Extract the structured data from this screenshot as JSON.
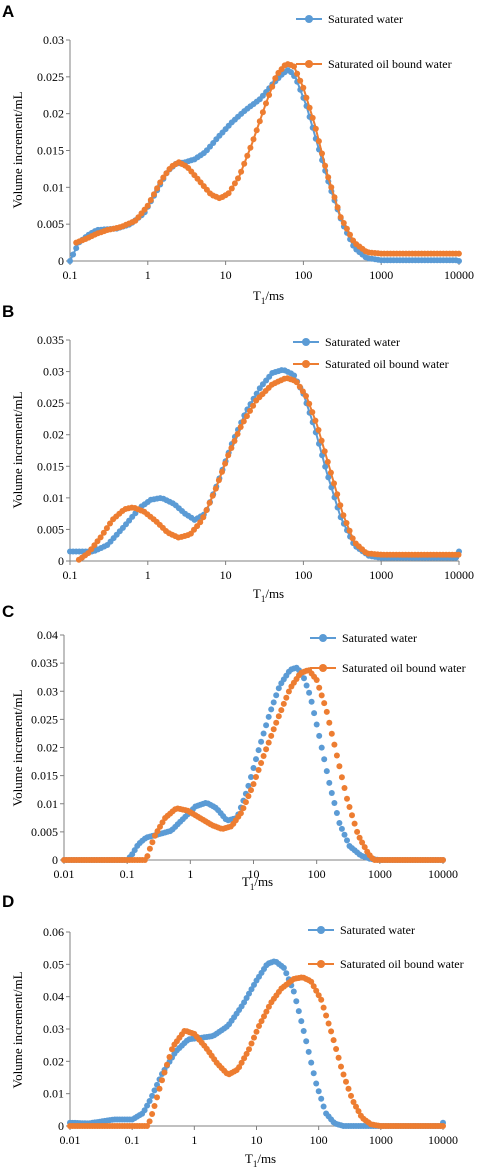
{
  "colors": {
    "water": "#5b9bd5",
    "oil": "#ed7d31",
    "axis": "#808080"
  },
  "chart_data": [
    {
      "type": "line",
      "panel": "A",
      "xlabel_main": "T",
      "xlabel_sub": "1",
      "xlabel_unit": "/ms",
      "ylabel": "Volume increment/mL",
      "x_scale": "log",
      "xlim": [
        0.1,
        10000
      ],
      "x_ticks": [
        "0.1",
        "1",
        "10",
        "100",
        "1000",
        "10000"
      ],
      "ylim": [
        0,
        0.03
      ],
      "y_ticks": [
        "0",
        "0.005",
        "0.01",
        "0.015",
        "0.02",
        "0.025",
        "0.03"
      ],
      "grid": false,
      "legend_position": "top-right",
      "series": [
        {
          "name": "Saturated water",
          "color_key": "water",
          "points": [
            [
              0.1,
              0
            ],
            [
              0.13,
              0.0025
            ],
            [
              0.17,
              0.0035
            ],
            [
              0.22,
              0.0042
            ],
            [
              0.28,
              0.0043
            ],
            [
              0.4,
              0.0044
            ],
            [
              0.6,
              0.005
            ],
            [
              0.9,
              0.0065
            ],
            [
              1.3,
              0.0095
            ],
            [
              1.8,
              0.0122
            ],
            [
              2.3,
              0.0132
            ],
            [
              3,
              0.0134
            ],
            [
              4,
              0.0138
            ],
            [
              5.5,
              0.0148
            ],
            [
              8,
              0.0168
            ],
            [
              12,
              0.0188
            ],
            [
              18,
              0.0205
            ],
            [
              28,
              0.022
            ],
            [
              40,
              0.024
            ],
            [
              55,
              0.0255
            ],
            [
              65,
              0.026
            ],
            [
              80,
              0.0248
            ],
            [
              110,
              0.021
            ],
            [
              150,
              0.016
            ],
            [
              220,
              0.01
            ],
            [
              320,
              0.005
            ],
            [
              450,
              0.0018
            ],
            [
              650,
              0.0004
            ],
            [
              1000,
              0.0001
            ],
            [
              10000,
              0.0001
            ]
          ]
        },
        {
          "name": "Saturated oil bound water",
          "color_key": "oil",
          "points": [
            [
              0.12,
              0.0025
            ],
            [
              0.16,
              0.003
            ],
            [
              0.22,
              0.0037
            ],
            [
              0.3,
              0.0042
            ],
            [
              0.45,
              0.0046
            ],
            [
              0.7,
              0.0055
            ],
            [
              1,
              0.0075
            ],
            [
              1.5,
              0.011
            ],
            [
              2,
              0.0128
            ],
            [
              2.5,
              0.0134
            ],
            [
              3.2,
              0.0128
            ],
            [
              4.5,
              0.011
            ],
            [
              6.5,
              0.009
            ],
            [
              8.5,
              0.0085
            ],
            [
              11,
              0.0092
            ],
            [
              15,
              0.0115
            ],
            [
              22,
              0.016
            ],
            [
              32,
              0.021
            ],
            [
              45,
              0.0252
            ],
            [
              60,
              0.0268
            ],
            [
              75,
              0.0265
            ],
            [
              100,
              0.0235
            ],
            [
              140,
              0.0185
            ],
            [
              200,
              0.012
            ],
            [
              300,
              0.006
            ],
            [
              450,
              0.0025
            ],
            [
              650,
              0.0012
            ],
            [
              1000,
              0.001
            ],
            [
              10000,
              0.001
            ]
          ]
        }
      ]
    },
    {
      "type": "line",
      "panel": "B",
      "xlabel_main": "T",
      "xlabel_sub": "1",
      "xlabel_unit": "/ms",
      "ylabel": "Volume increment/mL",
      "x_scale": "log",
      "xlim": [
        0.1,
        10000
      ],
      "x_ticks": [
        "0.1",
        "1",
        "10",
        "100",
        "1000",
        "10000"
      ],
      "ylim": [
        0,
        0.035
      ],
      "y_ticks": [
        "0",
        "0.005",
        "0.01",
        "0.015",
        "0.02",
        "0.025",
        "0.03",
        "0.035"
      ],
      "grid": false,
      "legend_position": "top-right",
      "series": [
        {
          "name": "Saturated water",
          "color_key": "water",
          "points": [
            [
              0.1,
              0.0015
            ],
            [
              0.2,
              0.0015
            ],
            [
              0.3,
              0.0025
            ],
            [
              0.5,
              0.0055
            ],
            [
              0.8,
              0.0085
            ],
            [
              1.1,
              0.0097
            ],
            [
              1.5,
              0.01
            ],
            [
              2.2,
              0.009
            ],
            [
              3,
              0.0075
            ],
            [
              4,
              0.0065
            ],
            [
              5.5,
              0.0075
            ],
            [
              8,
              0.0125
            ],
            [
              12,
              0.0185
            ],
            [
              18,
              0.0235
            ],
            [
              28,
              0.0275
            ],
            [
              40,
              0.0298
            ],
            [
              55,
              0.0303
            ],
            [
              75,
              0.0295
            ],
            [
              100,
              0.0265
            ],
            [
              140,
              0.021
            ],
            [
              200,
              0.014
            ],
            [
              300,
              0.007
            ],
            [
              450,
              0.0025
            ],
            [
              700,
              0.0008
            ],
            [
              1000,
              0.0005
            ],
            [
              10000,
              0.0005
            ]
          ]
        },
        {
          "name": "Saturated oil bound water",
          "color_key": "oil",
          "points": [
            [
              0.13,
              0.0002
            ],
            [
              0.17,
              0.0012
            ],
            [
              0.25,
              0.0038
            ],
            [
              0.35,
              0.0065
            ],
            [
              0.5,
              0.0082
            ],
            [
              0.65,
              0.0085
            ],
            [
              0.9,
              0.0078
            ],
            [
              1.3,
              0.0062
            ],
            [
              1.8,
              0.0045
            ],
            [
              2.5,
              0.0037
            ],
            [
              3.5,
              0.0042
            ],
            [
              5,
              0.0065
            ],
            [
              7.5,
              0.0115
            ],
            [
              11,
              0.017
            ],
            [
              16,
              0.0215
            ],
            [
              25,
              0.0255
            ],
            [
              40,
              0.028
            ],
            [
              60,
              0.029
            ],
            [
              80,
              0.0285
            ],
            [
              110,
              0.026
            ],
            [
              150,
              0.0215
            ],
            [
              220,
              0.0145
            ],
            [
              320,
              0.0075
            ],
            [
              450,
              0.003
            ],
            [
              650,
              0.0012
            ],
            [
              1000,
              0.001
            ],
            [
              10000,
              0.001
            ]
          ]
        }
      ]
    },
    {
      "type": "scatter",
      "panel": "C",
      "xlabel_main": "T",
      "xlabel_sub": "1",
      "xlabel_unit": "/ms",
      "ylabel": "Volume increment/mL",
      "x_scale": "log",
      "xlim": [
        0.01,
        10000
      ],
      "x_ticks": [
        "0.01",
        "0.1",
        "1",
        "10",
        "100",
        "1000",
        "10000"
      ],
      "ylim": [
        0,
        0.04
      ],
      "y_ticks": [
        "0",
        "0.005",
        "0.01",
        "0.015",
        "0.02",
        "0.025",
        "0.03",
        "0.035",
        "0.04"
      ],
      "grid": false,
      "legend_position": "top-right",
      "series": [
        {
          "name": "Saturated water",
          "color_key": "water",
          "points": [
            [
              0.01,
              0
            ],
            [
              0.1,
              0
            ],
            [
              0.12,
              0.001
            ],
            [
              0.15,
              0.0028
            ],
            [
              0.2,
              0.004
            ],
            [
              0.3,
              0.0045
            ],
            [
              0.5,
              0.0052
            ],
            [
              0.8,
              0.0075
            ],
            [
              1.2,
              0.0095
            ],
            [
              1.8,
              0.0102
            ],
            [
              2.6,
              0.0092
            ],
            [
              3.8,
              0.007
            ],
            [
              5.5,
              0.0075
            ],
            [
              8,
              0.0125
            ],
            [
              12,
              0.0195
            ],
            [
              18,
              0.026
            ],
            [
              26,
              0.031
            ],
            [
              38,
              0.0338
            ],
            [
              48,
              0.0342
            ],
            [
              60,
              0.033
            ],
            [
              80,
              0.029
            ],
            [
              110,
              0.022
            ],
            [
              160,
              0.0135
            ],
            [
              230,
              0.0065
            ],
            [
              330,
              0.0025
            ],
            [
              500,
              0.0008
            ],
            [
              700,
              0.0002
            ],
            [
              1000,
              0
            ],
            [
              10000,
              0
            ]
          ]
        },
        {
          "name": "Saturated oil bound water",
          "color_key": "oil",
          "points": [
            [
              0.01,
              0
            ],
            [
              0.2,
              0
            ],
            [
              0.22,
              0.0015
            ],
            [
              0.28,
              0.0045
            ],
            [
              0.4,
              0.0075
            ],
            [
              0.6,
              0.0092
            ],
            [
              0.9,
              0.0088
            ],
            [
              1.4,
              0.0075
            ],
            [
              2.2,
              0.0062
            ],
            [
              3.2,
              0.0055
            ],
            [
              4.5,
              0.006
            ],
            [
              6.5,
              0.0085
            ],
            [
              10,
              0.0135
            ],
            [
              15,
              0.019
            ],
            [
              24,
              0.025
            ],
            [
              38,
              0.0305
            ],
            [
              55,
              0.0332
            ],
            [
              75,
              0.0338
            ],
            [
              100,
              0.032
            ],
            [
              140,
              0.027
            ],
            [
              200,
              0.0195
            ],
            [
              300,
              0.011
            ],
            [
              450,
              0.0045
            ],
            [
              650,
              0.0012
            ],
            [
              800,
              0
            ],
            [
              1000,
              0
            ],
            [
              10000,
              0
            ]
          ]
        }
      ]
    },
    {
      "type": "scatter",
      "panel": "D",
      "xlabel_main": "T",
      "xlabel_sub": "1",
      "xlabel_unit": "/ms",
      "ylabel": "Volume increment/mL",
      "x_scale": "log",
      "xlim": [
        0.01,
        10000
      ],
      "x_ticks": [
        "0.01",
        "0.1",
        "1",
        "10",
        "100",
        "1000",
        "10000"
      ],
      "ylim": [
        0,
        0.06
      ],
      "y_ticks": [
        "0",
        "0.01",
        "0.02",
        "0.03",
        "0.04",
        "0.05",
        "0.06"
      ],
      "grid": false,
      "legend_position": "top-right",
      "series": [
        {
          "name": "Saturated water",
          "color_key": "water",
          "points": [
            [
              0.01,
              0.001
            ],
            [
              0.02,
              0.0008
            ],
            [
              0.05,
              0.002
            ],
            [
              0.1,
              0.002
            ],
            [
              0.15,
              0.004
            ],
            [
              0.2,
              0.0085
            ],
            [
              0.3,
              0.016
            ],
            [
              0.5,
              0.023
            ],
            [
              0.8,
              0.0268
            ],
            [
              1.2,
              0.0272
            ],
            [
              2,
              0.0278
            ],
            [
              3.5,
              0.031
            ],
            [
              6,
              0.0375
            ],
            [
              10,
              0.045
            ],
            [
              15,
              0.0502
            ],
            [
              20,
              0.051
            ],
            [
              28,
              0.0488
            ],
            [
              40,
              0.0415
            ],
            [
              60,
              0.028
            ],
            [
              90,
              0.0135
            ],
            [
              130,
              0.004
            ],
            [
              180,
              0.0008
            ],
            [
              250,
              0
            ],
            [
              10000,
              0
            ]
          ]
        },
        {
          "name": "Saturated oil bound water",
          "color_key": "oil",
          "points": [
            [
              0.01,
              0
            ],
            [
              0.18,
              0
            ],
            [
              0.22,
              0.005
            ],
            [
              0.3,
              0.014
            ],
            [
              0.45,
              0.0245
            ],
            [
              0.7,
              0.0295
            ],
            [
              1,
              0.0285
            ],
            [
              1.5,
              0.0245
            ],
            [
              2.3,
              0.0195
            ],
            [
              3.5,
              0.0158
            ],
            [
              5,
              0.0175
            ],
            [
              7.5,
              0.0235
            ],
            [
              11,
              0.031
            ],
            [
              17,
              0.038
            ],
            [
              25,
              0.0425
            ],
            [
              40,
              0.0455
            ],
            [
              55,
              0.046
            ],
            [
              75,
              0.0448
            ],
            [
              110,
              0.039
            ],
            [
              160,
              0.029
            ],
            [
              240,
              0.017
            ],
            [
              350,
              0.008
            ],
            [
              500,
              0.0025
            ],
            [
              700,
              0.0005
            ],
            [
              1000,
              0
            ],
            [
              10000,
              0
            ]
          ]
        }
      ]
    }
  ]
}
